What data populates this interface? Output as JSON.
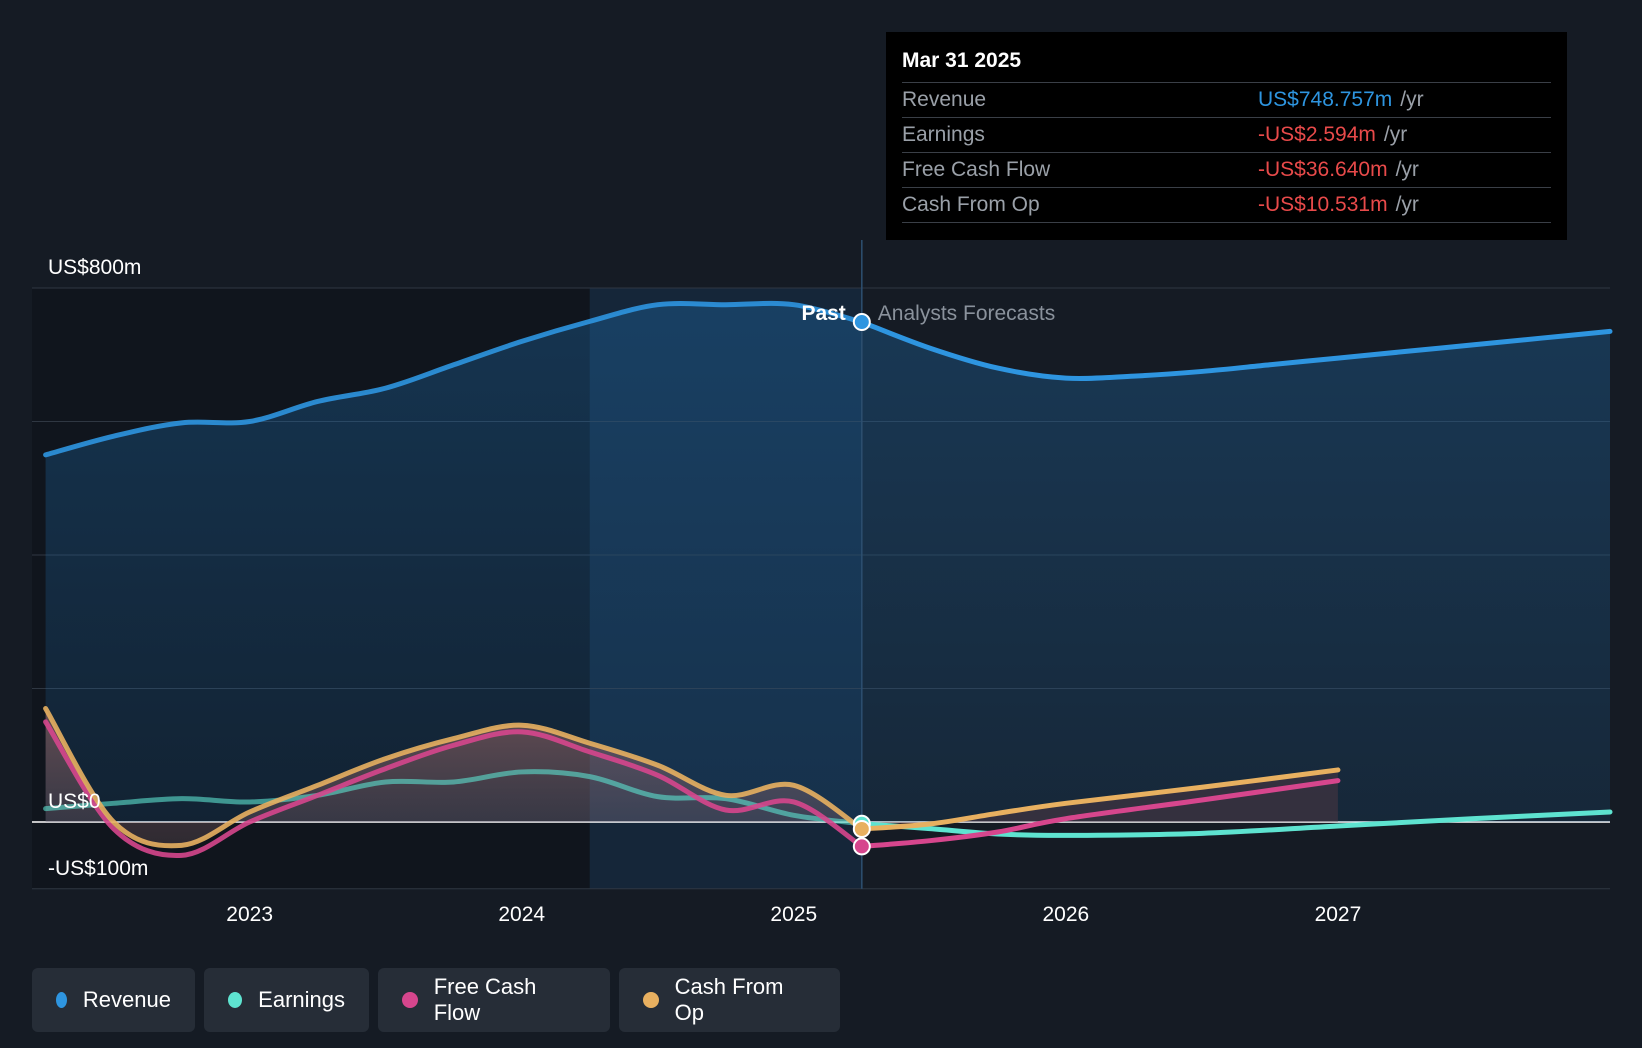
{
  "chart_data": {
    "type": "line",
    "y_axis_labels": [
      "US$800m",
      "US$0",
      "-US$100m"
    ],
    "ylim": [
      -100,
      800
    ],
    "xlim": [
      2022.2,
      2028.0
    ],
    "x_ticks": [
      {
        "value": 2023,
        "label": "2023"
      },
      {
        "value": 2024,
        "label": "2024"
      },
      {
        "value": 2025,
        "label": "2025"
      },
      {
        "value": 2026,
        "label": "2026"
      },
      {
        "value": 2027,
        "label": "2027"
      }
    ],
    "gridlines": [
      800,
      600,
      400,
      200,
      0,
      -100
    ],
    "past_label": "Past",
    "forecast_label": "Analysts Forecasts",
    "past_forecast_boundary": 2025.25,
    "highlight_start": 2024.25,
    "legend_position": "bottom-left",
    "series": [
      {
        "name": "Revenue",
        "color": "#2e95e0",
        "past": [
          [
            2022.25,
            550
          ],
          [
            2022.5,
            578
          ],
          [
            2022.75,
            598
          ],
          [
            2023.0,
            600
          ],
          [
            2023.25,
            630
          ],
          [
            2023.5,
            650
          ],
          [
            2023.75,
            685
          ],
          [
            2024.0,
            720
          ],
          [
            2024.25,
            750
          ],
          [
            2024.5,
            775
          ],
          [
            2024.75,
            775
          ],
          [
            2025.0,
            775
          ],
          [
            2025.25,
            749
          ]
        ],
        "forecast": [
          [
            2025.25,
            749
          ],
          [
            2025.5,
            710
          ],
          [
            2025.75,
            680
          ],
          [
            2026.0,
            665
          ],
          [
            2026.25,
            668
          ],
          [
            2026.5,
            675
          ],
          [
            2026.75,
            685
          ],
          [
            2027.0,
            695
          ],
          [
            2027.25,
            705
          ],
          [
            2027.5,
            715
          ],
          [
            2027.75,
            725
          ],
          [
            2028.0,
            735
          ]
        ]
      },
      {
        "name": "Earnings",
        "color": "#5ee3d0",
        "past": [
          [
            2022.25,
            20
          ],
          [
            2022.5,
            28
          ],
          [
            2022.75,
            35
          ],
          [
            2023.0,
            30
          ],
          [
            2023.25,
            40
          ],
          [
            2023.5,
            60
          ],
          [
            2023.75,
            60
          ],
          [
            2024.0,
            75
          ],
          [
            2024.25,
            68
          ],
          [
            2024.5,
            38
          ],
          [
            2024.75,
            35
          ],
          [
            2025.0,
            10
          ],
          [
            2025.25,
            -2.6
          ]
        ],
        "forecast": [
          [
            2025.25,
            -2.6
          ],
          [
            2025.5,
            -10
          ],
          [
            2025.75,
            -18
          ],
          [
            2026.0,
            -20
          ],
          [
            2026.5,
            -17
          ],
          [
            2027.0,
            -6
          ],
          [
            2027.5,
            5
          ],
          [
            2028.0,
            15
          ]
        ]
      },
      {
        "name": "Free Cash Flow",
        "color": "#d6468d",
        "past": [
          [
            2022.25,
            150
          ],
          [
            2022.5,
            -10
          ],
          [
            2022.75,
            -50
          ],
          [
            2023.0,
            0
          ],
          [
            2023.25,
            40
          ],
          [
            2023.5,
            80
          ],
          [
            2023.75,
            115
          ],
          [
            2024.0,
            135
          ],
          [
            2024.25,
            105
          ],
          [
            2024.5,
            70
          ],
          [
            2024.75,
            18
          ],
          [
            2025.0,
            30
          ],
          [
            2025.25,
            -36.6
          ]
        ],
        "forecast": [
          [
            2025.25,
            -36.6
          ],
          [
            2025.5,
            -28
          ],
          [
            2025.75,
            -15
          ],
          [
            2026.0,
            5
          ],
          [
            2026.5,
            33
          ],
          [
            2027.0,
            62
          ]
        ]
      },
      {
        "name": "Cash From Op",
        "color": "#e8b060",
        "past": [
          [
            2022.25,
            170
          ],
          [
            2022.5,
            0
          ],
          [
            2022.75,
            -35
          ],
          [
            2023.0,
            15
          ],
          [
            2023.25,
            55
          ],
          [
            2023.5,
            95
          ],
          [
            2023.75,
            125
          ],
          [
            2024.0,
            145
          ],
          [
            2024.25,
            118
          ],
          [
            2024.5,
            85
          ],
          [
            2024.75,
            40
          ],
          [
            2025.0,
            55
          ],
          [
            2025.25,
            -10.5
          ]
        ],
        "forecast": [
          [
            2025.25,
            -10.5
          ],
          [
            2025.5,
            -3
          ],
          [
            2025.75,
            13
          ],
          [
            2026.0,
            28
          ],
          [
            2026.5,
            52
          ],
          [
            2027.0,
            78
          ]
        ]
      }
    ]
  },
  "tooltip": {
    "date": "Mar 31 2025",
    "rows": [
      {
        "label": "Revenue",
        "value": "US$748.757m",
        "unit": "/yr",
        "color": "#2e95e0"
      },
      {
        "label": "Earnings",
        "value": "-US$2.594m",
        "unit": "/yr",
        "color": "#e84a4a"
      },
      {
        "label": "Free Cash Flow",
        "value": "-US$36.640m",
        "unit": "/yr",
        "color": "#e84a4a"
      },
      {
        "label": "Cash From Op",
        "value": "-US$10.531m",
        "unit": "/yr",
        "color": "#e84a4a"
      }
    ]
  },
  "legend": [
    {
      "label": "Revenue",
      "color": "#2e95e0"
    },
    {
      "label": "Earnings",
      "color": "#5ee3d0"
    },
    {
      "label": "Free Cash Flow",
      "color": "#d6468d"
    },
    {
      "label": "Cash From Op",
      "color": "#e8b060"
    }
  ]
}
